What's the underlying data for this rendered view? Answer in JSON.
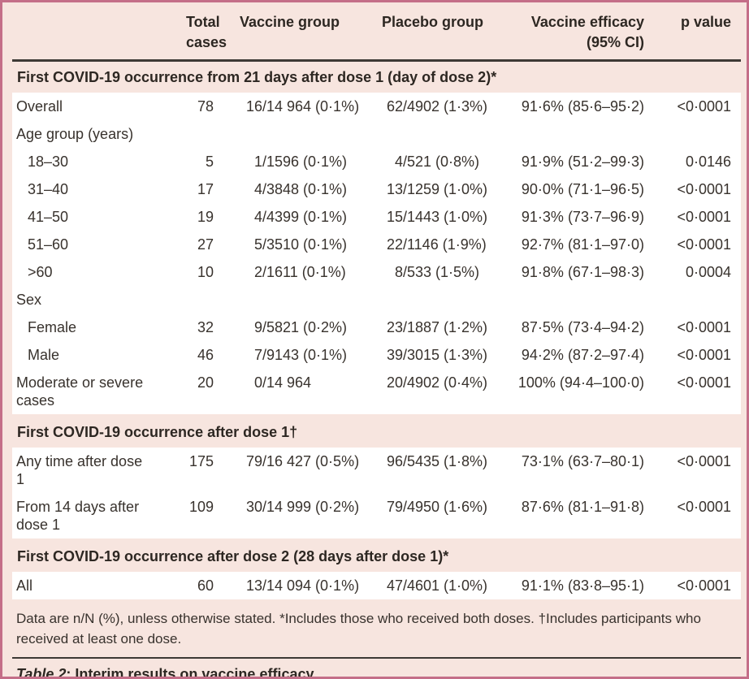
{
  "colors": {
    "border": "#c46e88",
    "background": "#f7e5df",
    "row_background": "#ffffff",
    "text": "#38322d",
    "heading_text": "#2d2722",
    "rule": "#3d3935"
  },
  "table": {
    "columns": [
      {
        "id": "row-label",
        "lines": []
      },
      {
        "id": "total-cases",
        "lines": [
          "Total",
          "cases"
        ]
      },
      {
        "id": "vaccine-group",
        "lines": [
          "Vaccine group"
        ]
      },
      {
        "id": "placebo-group",
        "lines": [
          "Placebo group"
        ]
      },
      {
        "id": "vaccine-efficacy",
        "lines": [
          "Vaccine efficacy",
          "(95% CI)"
        ]
      },
      {
        "id": "p-value",
        "lines": [
          "p value"
        ]
      }
    ],
    "sections": [
      {
        "title": "First COVID-19 occurrence from 21 days after dose 1 (day of dose 2)*",
        "rows": [
          {
            "label": "Overall",
            "indent": 0,
            "total": "78",
            "vaccine": "16/14 964 (0·1%)",
            "placebo": "62/4902 (1·3%)",
            "efficacy": "91·6% (85·6–95·2)",
            "p": "<0·0001"
          },
          {
            "label": "Age group (years)",
            "indent": 0,
            "subheader": true
          },
          {
            "label": "18–30",
            "indent": 1,
            "total": "5",
            "vaccine": "1/1596 (0·1%)",
            "placebo": "4/521 (0·8%)",
            "efficacy": "91·9% (51·2–99·3)",
            "p": "0·0146"
          },
          {
            "label": "31–40",
            "indent": 1,
            "total": "17",
            "vaccine": "4/3848 (0·1%)",
            "placebo": "13/1259 (1·0%)",
            "efficacy": "90·0% (71·1–96·5)",
            "p": "<0·0001"
          },
          {
            "label": "41–50",
            "indent": 1,
            "total": "19",
            "vaccine": "4/4399 (0·1%)",
            "placebo": "15/1443 (1·0%)",
            "efficacy": "91·3% (73·7–96·9)",
            "p": "<0·0001"
          },
          {
            "label": "51–60",
            "indent": 1,
            "total": "27",
            "vaccine": "5/3510 (0·1%)",
            "placebo": "22/1146 (1·9%)",
            "efficacy": "92·7% (81·1–97·0)",
            "p": "<0·0001"
          },
          {
            "label": ">60",
            "indent": 1,
            "total": "10",
            "vaccine": "2/1611 (0·1%)",
            "placebo": "8/533 (1·5%)",
            "efficacy": "91·8% (67·1–98·3)",
            "p": "0·0004"
          },
          {
            "label": "Sex",
            "indent": 0,
            "subheader": true
          },
          {
            "label": "Female",
            "indent": 1,
            "total": "32",
            "vaccine": "9/5821 (0·2%)",
            "placebo": "23/1887 (1·2%)",
            "efficacy": "87·5% (73·4–94·2)",
            "p": "<0·0001"
          },
          {
            "label": "Male",
            "indent": 1,
            "total": "46",
            "vaccine": "7/9143 (0·1%)",
            "placebo": "39/3015 (1·3%)",
            "efficacy": "94·2% (87·2–97·4)",
            "p": "<0·0001"
          },
          {
            "label": "Moderate or severe cases",
            "indent": 0,
            "total": "20",
            "vaccine": "0/14 964",
            "placebo": "20/4902 (0·4%)",
            "efficacy": "100% (94·4–100·0)",
            "p": "<0·0001"
          }
        ]
      },
      {
        "title": "First COVID-19 occurrence after dose 1†",
        "rows": [
          {
            "label": "Any time after dose 1",
            "indent": 0,
            "total": "175",
            "vaccine": "79/16 427 (0·5%)",
            "placebo": "96/5435 (1·8%)",
            "efficacy": "73·1% (63·7–80·1)",
            "p": "<0·0001"
          },
          {
            "label": "From 14 days after dose 1",
            "indent": 0,
            "total": "109",
            "vaccine": "30/14 999 (0·2%)",
            "placebo": "79/4950 (1·6%)",
            "efficacy": "87·6% (81·1–91·8)",
            "p": "<0·0001"
          }
        ]
      },
      {
        "title": "First COVID-19 occurrence after dose 2 (28 days after dose 1)*",
        "rows": [
          {
            "label": "All",
            "indent": 0,
            "total": "60",
            "vaccine": "13/14 094 (0·1%)",
            "placebo": "47/4601 (1·0%)",
            "efficacy": "91·1% (83·8–95·1)",
            "p": "<0·0001"
          }
        ]
      }
    ],
    "footnote": "Data are n/N (%), unless otherwise stated. *Includes those who received both doses. †Includes participants who received at least one dose.",
    "caption": {
      "label": "Table 2",
      "rest": ": Interim results on vaccine efficacy"
    }
  }
}
